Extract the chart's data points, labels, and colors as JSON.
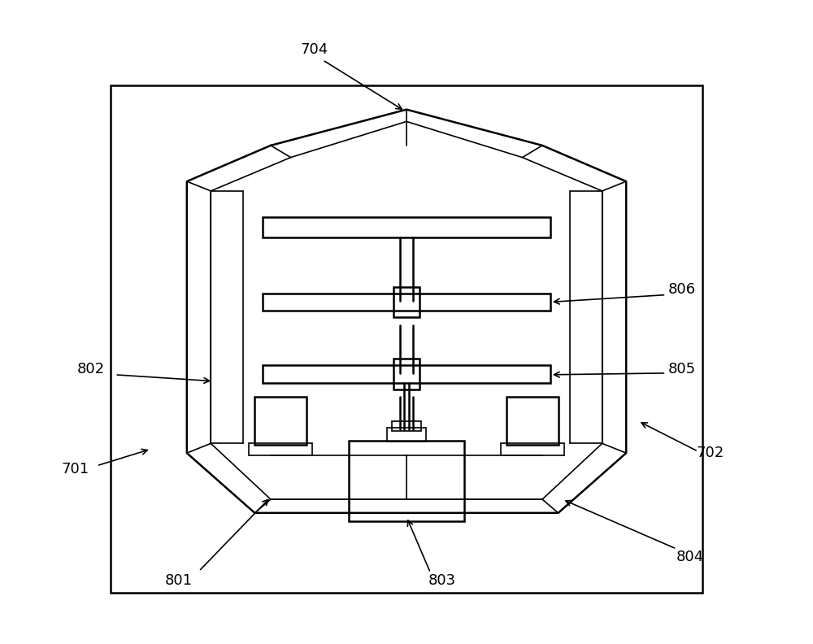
{
  "bg_color": "#ffffff",
  "line_color": "#000000",
  "lw_thin": 1.2,
  "lw_med": 1.8,
  "lw_thick": 2.2,
  "fig_width": 10.0,
  "fig_height": 7.92
}
